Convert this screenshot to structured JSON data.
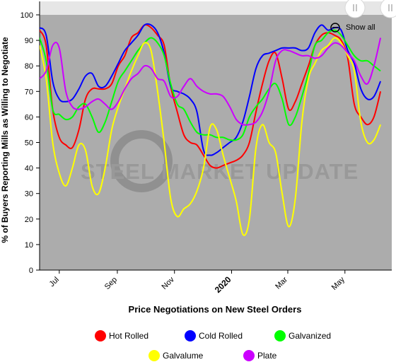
{
  "chart_data": {
    "type": "line",
    "title": "",
    "xlabel": "Price Negotiations on New Steel Orders",
    "ylabel": "% of Buyers Reporting Mills as Willing to Negotiate",
    "ylim": [
      0,
      100
    ],
    "yticks": [
      0,
      10,
      20,
      30,
      40,
      50,
      60,
      70,
      80,
      90,
      100
    ],
    "xlim": [
      "2019-06-10",
      "2020-06-20"
    ],
    "xticks": [
      {
        "date": "2019-07-01",
        "label": "Jul",
        "bold": false
      },
      {
        "date": "2019-09-01",
        "label": "Sep",
        "bold": false
      },
      {
        "date": "2019-11-01",
        "label": "Nov",
        "bold": false
      },
      {
        "date": "2020-01-01",
        "label": "2020",
        "bold": true
      },
      {
        "date": "2020-03-01",
        "label": "Mar",
        "bold": false
      },
      {
        "date": "2020-05-01",
        "label": "May",
        "bold": false
      }
    ],
    "grid": false,
    "legend_position": "bottom",
    "watermark": "STEEL MARKET UPDATE",
    "series": [
      {
        "name": "Hot Rolled",
        "color": "#ff0000",
        "points": [
          [
            "2019-06-10",
            94
          ],
          [
            "2019-06-17",
            88
          ],
          [
            "2019-06-24",
            63
          ],
          [
            "2019-07-01",
            52
          ],
          [
            "2019-07-08",
            49
          ],
          [
            "2019-07-15",
            48
          ],
          [
            "2019-07-22",
            55
          ],
          [
            "2019-07-29",
            67
          ],
          [
            "2019-08-05",
            71
          ],
          [
            "2019-08-12",
            71
          ],
          [
            "2019-08-19",
            71
          ],
          [
            "2019-08-26",
            73
          ],
          [
            "2019-09-02",
            80
          ],
          [
            "2019-09-09",
            84
          ],
          [
            "2019-09-16",
            91
          ],
          [
            "2019-09-23",
            93
          ],
          [
            "2019-09-30",
            96
          ],
          [
            "2019-10-07",
            95
          ],
          [
            "2019-10-14",
            92
          ],
          [
            "2019-10-21",
            88
          ],
          [
            "2019-10-28",
            72
          ],
          [
            "2019-11-04",
            62
          ],
          [
            "2019-11-11",
            53
          ],
          [
            "2019-11-18",
            50
          ],
          [
            "2019-11-25",
            49
          ],
          [
            "2019-12-02",
            45
          ],
          [
            "2019-12-09",
            41
          ],
          [
            "2019-12-16",
            40
          ],
          [
            "2019-12-23",
            41
          ],
          [
            "2019-12-30",
            42
          ],
          [
            "2020-01-06",
            43
          ],
          [
            "2020-01-13",
            45
          ],
          [
            "2020-01-20",
            50
          ],
          [
            "2020-01-27",
            62
          ],
          [
            "2020-02-03",
            73
          ],
          [
            "2020-02-10",
            82
          ],
          [
            "2020-02-17",
            85
          ],
          [
            "2020-02-24",
            75
          ],
          [
            "2020-03-02",
            63
          ],
          [
            "2020-03-09",
            66
          ],
          [
            "2020-03-16",
            73
          ],
          [
            "2020-03-23",
            80
          ],
          [
            "2020-03-30",
            88
          ],
          [
            "2020-04-06",
            92
          ],
          [
            "2020-04-13",
            93
          ],
          [
            "2020-04-20",
            92
          ],
          [
            "2020-04-27",
            90
          ],
          [
            "2020-05-04",
            83
          ],
          [
            "2020-05-11",
            65
          ],
          [
            "2020-05-18",
            60
          ],
          [
            "2020-05-25",
            57
          ],
          [
            "2020-06-01",
            60
          ],
          [
            "2020-06-08",
            70
          ]
        ]
      },
      {
        "name": "Cold Rolled",
        "color": "#0000ff",
        "points": [
          [
            "2019-06-10",
            95
          ],
          [
            "2019-06-17",
            92
          ],
          [
            "2019-06-24",
            74
          ],
          [
            "2019-07-01",
            67
          ],
          [
            "2019-07-08",
            66
          ],
          [
            "2019-07-15",
            67
          ],
          [
            "2019-07-22",
            71
          ],
          [
            "2019-07-29",
            76
          ],
          [
            "2019-08-05",
            77
          ],
          [
            "2019-08-12",
            72
          ],
          [
            "2019-08-19",
            72
          ],
          [
            "2019-08-26",
            76
          ],
          [
            "2019-09-02",
            81
          ],
          [
            "2019-09-09",
            86
          ],
          [
            "2019-09-16",
            89
          ],
          [
            "2019-09-23",
            92
          ],
          [
            "2019-09-30",
            96
          ],
          [
            "2019-10-07",
            96
          ],
          [
            "2019-10-14",
            93
          ],
          [
            "2019-10-21",
            85
          ],
          [
            "2019-10-28",
            72
          ],
          [
            "2019-11-04",
            70
          ],
          [
            "2019-11-11",
            69
          ],
          [
            "2019-11-18",
            67
          ],
          [
            "2019-11-25",
            62
          ],
          [
            "2019-12-02",
            47
          ],
          [
            "2019-12-09",
            45
          ],
          [
            "2019-12-16",
            46
          ],
          [
            "2019-12-23",
            48
          ],
          [
            "2019-12-30",
            50
          ],
          [
            "2020-01-06",
            52
          ],
          [
            "2020-01-13",
            58
          ],
          [
            "2020-01-20",
            68
          ],
          [
            "2020-01-27",
            79
          ],
          [
            "2020-02-03",
            84
          ],
          [
            "2020-02-10",
            85
          ],
          [
            "2020-02-17",
            86
          ],
          [
            "2020-02-24",
            87
          ],
          [
            "2020-03-02",
            87
          ],
          [
            "2020-03-09",
            87
          ],
          [
            "2020-03-16",
            86
          ],
          [
            "2020-03-23",
            87
          ],
          [
            "2020-03-30",
            93
          ],
          [
            "2020-04-06",
            96
          ],
          [
            "2020-04-13",
            94
          ],
          [
            "2020-04-20",
            95
          ],
          [
            "2020-04-27",
            94
          ],
          [
            "2020-05-04",
            86
          ],
          [
            "2020-05-11",
            81
          ],
          [
            "2020-05-18",
            71
          ],
          [
            "2020-05-25",
            67
          ],
          [
            "2020-06-01",
            68
          ],
          [
            "2020-06-08",
            74
          ]
        ]
      },
      {
        "name": "Galvanized",
        "color": "#00ff00",
        "points": [
          [
            "2019-06-10",
            91
          ],
          [
            "2019-06-17",
            82
          ],
          [
            "2019-06-24",
            63
          ],
          [
            "2019-07-01",
            61
          ],
          [
            "2019-07-08",
            59
          ],
          [
            "2019-07-15",
            60
          ],
          [
            "2019-07-22",
            64
          ],
          [
            "2019-07-29",
            65
          ],
          [
            "2019-08-05",
            60
          ],
          [
            "2019-08-12",
            54
          ],
          [
            "2019-08-19",
            58
          ],
          [
            "2019-08-26",
            66
          ],
          [
            "2019-09-02",
            74
          ],
          [
            "2019-09-09",
            78
          ],
          [
            "2019-09-16",
            82
          ],
          [
            "2019-09-23",
            86
          ],
          [
            "2019-09-30",
            89
          ],
          [
            "2019-10-07",
            91
          ],
          [
            "2019-10-14",
            89
          ],
          [
            "2019-10-21",
            84
          ],
          [
            "2019-10-28",
            73
          ],
          [
            "2019-11-04",
            65
          ],
          [
            "2019-11-11",
            63
          ],
          [
            "2019-11-18",
            58
          ],
          [
            "2019-11-25",
            54
          ],
          [
            "2019-12-02",
            53
          ],
          [
            "2019-12-09",
            53
          ],
          [
            "2019-12-16",
            52
          ],
          [
            "2019-12-23",
            52
          ],
          [
            "2019-12-30",
            51
          ],
          [
            "2020-01-06",
            51
          ],
          [
            "2020-01-13",
            53
          ],
          [
            "2020-01-20",
            60
          ],
          [
            "2020-01-27",
            64
          ],
          [
            "2020-02-03",
            67
          ],
          [
            "2020-02-10",
            71
          ],
          [
            "2020-02-17",
            73
          ],
          [
            "2020-02-24",
            67
          ],
          [
            "2020-03-02",
            57
          ],
          [
            "2020-03-09",
            60
          ],
          [
            "2020-03-16",
            68
          ],
          [
            "2020-03-23",
            77
          ],
          [
            "2020-03-30",
            88
          ],
          [
            "2020-04-06",
            90
          ],
          [
            "2020-04-13",
            93
          ],
          [
            "2020-04-20",
            94
          ],
          [
            "2020-04-27",
            92
          ],
          [
            "2020-05-04",
            88
          ],
          [
            "2020-05-11",
            84
          ],
          [
            "2020-05-18",
            82
          ],
          [
            "2020-05-25",
            82
          ],
          [
            "2020-06-01",
            80
          ],
          [
            "2020-06-08",
            78
          ]
        ]
      },
      {
        "name": "Galvalume",
        "color": "#ffff00",
        "points": [
          [
            "2019-06-10",
            88
          ],
          [
            "2019-06-17",
            75
          ],
          [
            "2019-06-24",
            50
          ],
          [
            "2019-07-01",
            38
          ],
          [
            "2019-07-08",
            33
          ],
          [
            "2019-07-15",
            40
          ],
          [
            "2019-07-22",
            49
          ],
          [
            "2019-07-29",
            47
          ],
          [
            "2019-08-05",
            33
          ],
          [
            "2019-08-12",
            30
          ],
          [
            "2019-08-19",
            40
          ],
          [
            "2019-08-26",
            55
          ],
          [
            "2019-09-02",
            64
          ],
          [
            "2019-09-09",
            71
          ],
          [
            "2019-09-16",
            78
          ],
          [
            "2019-09-23",
            84
          ],
          [
            "2019-09-30",
            89
          ],
          [
            "2019-10-07",
            86
          ],
          [
            "2019-10-14",
            70
          ],
          [
            "2019-10-21",
            50
          ],
          [
            "2019-10-28",
            28
          ],
          [
            "2019-11-04",
            21
          ],
          [
            "2019-11-11",
            24
          ],
          [
            "2019-11-18",
            26
          ],
          [
            "2019-11-25",
            31
          ],
          [
            "2019-12-02",
            40
          ],
          [
            "2019-12-09",
            56
          ],
          [
            "2019-12-16",
            55
          ],
          [
            "2019-12-23",
            45
          ],
          [
            "2019-12-30",
            36
          ],
          [
            "2020-01-06",
            27
          ],
          [
            "2020-01-13",
            14
          ],
          [
            "2020-01-20",
            20
          ],
          [
            "2020-01-27",
            48
          ],
          [
            "2020-02-03",
            57
          ],
          [
            "2020-02-10",
            50
          ],
          [
            "2020-02-17",
            46
          ],
          [
            "2020-02-24",
            30
          ],
          [
            "2020-03-02",
            17
          ],
          [
            "2020-03-09",
            28
          ],
          [
            "2020-03-16",
            58
          ],
          [
            "2020-03-23",
            75
          ],
          [
            "2020-03-30",
            81
          ],
          [
            "2020-04-06",
            86
          ],
          [
            "2020-04-13",
            88
          ],
          [
            "2020-04-20",
            91
          ],
          [
            "2020-04-27",
            89
          ],
          [
            "2020-05-04",
            84
          ],
          [
            "2020-05-11",
            78
          ],
          [
            "2020-05-18",
            58
          ],
          [
            "2020-05-25",
            50
          ],
          [
            "2020-06-01",
            51
          ],
          [
            "2020-06-08",
            57
          ]
        ]
      },
      {
        "name": "Plate",
        "color": "#cc00ff",
        "points": [
          [
            "2019-06-10",
            75
          ],
          [
            "2019-06-17",
            78
          ],
          [
            "2019-06-24",
            88
          ],
          [
            "2019-07-01",
            87
          ],
          [
            "2019-07-08",
            70
          ],
          [
            "2019-07-15",
            64
          ],
          [
            "2019-07-22",
            63
          ],
          [
            "2019-07-29",
            64
          ],
          [
            "2019-08-05",
            66
          ],
          [
            "2019-08-12",
            67
          ],
          [
            "2019-08-19",
            65
          ],
          [
            "2019-08-26",
            63
          ],
          [
            "2019-09-02",
            66
          ],
          [
            "2019-09-09",
            71
          ],
          [
            "2019-09-16",
            75
          ],
          [
            "2019-09-23",
            77
          ],
          [
            "2019-09-30",
            80
          ],
          [
            "2019-10-07",
            79
          ],
          [
            "2019-10-14",
            75
          ],
          [
            "2019-10-21",
            74
          ],
          [
            "2019-10-28",
            68
          ],
          [
            "2019-11-04",
            68
          ],
          [
            "2019-11-11",
            72
          ],
          [
            "2019-11-18",
            75
          ],
          [
            "2019-11-25",
            72
          ],
          [
            "2019-12-02",
            70
          ],
          [
            "2019-12-09",
            69
          ],
          [
            "2019-12-16",
            69
          ],
          [
            "2019-12-23",
            68
          ],
          [
            "2019-12-30",
            64
          ],
          [
            "2020-01-06",
            59
          ],
          [
            "2020-01-13",
            57
          ],
          [
            "2020-01-20",
            57
          ],
          [
            "2020-01-27",
            58
          ],
          [
            "2020-02-03",
            62
          ],
          [
            "2020-02-10",
            70
          ],
          [
            "2020-02-17",
            82
          ],
          [
            "2020-02-24",
            86
          ],
          [
            "2020-03-02",
            86
          ],
          [
            "2020-03-09",
            85
          ],
          [
            "2020-03-16",
            84
          ],
          [
            "2020-03-23",
            84
          ],
          [
            "2020-03-30",
            83
          ],
          [
            "2020-04-06",
            84
          ],
          [
            "2020-04-13",
            87
          ],
          [
            "2020-04-20",
            89
          ],
          [
            "2020-04-27",
            88
          ],
          [
            "2020-05-04",
            85
          ],
          [
            "2020-05-11",
            82
          ],
          [
            "2020-05-18",
            76
          ],
          [
            "2020-05-25",
            73
          ],
          [
            "2020-06-01",
            80
          ],
          [
            "2020-06-08",
            91
          ]
        ]
      }
    ]
  },
  "ui": {
    "show_all_label": "Show all",
    "scroll_handle_icon": "double-bar-icon"
  }
}
